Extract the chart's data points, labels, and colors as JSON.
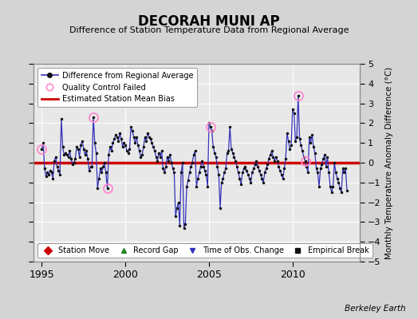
{
  "title": "DECORAH MUNI AP",
  "subtitle": "Difference of Station Temperature Data from Regional Average",
  "ylabel": "Monthly Temperature Anomaly Difference (°C)",
  "ylim": [
    -5,
    5
  ],
  "xlim": [
    1994.5,
    2014.0
  ],
  "bias": 0.0,
  "fig_bg": "#d4d4d4",
  "plot_bg": "#e8e8e8",
  "line_color": "#3333bb",
  "marker_color": "#111111",
  "bias_color": "#cc0000",
  "qc_color": "#ff88cc",
  "grid_color": "#ffffff",
  "berkeley_earth_text": "Berkeley Earth",
  "time_series": [
    [
      1995.0,
      0.7
    ],
    [
      1995.083,
      1.0
    ],
    [
      1995.167,
      -0.3
    ],
    [
      1995.25,
      -0.7
    ],
    [
      1995.333,
      -0.5
    ],
    [
      1995.417,
      -0.6
    ],
    [
      1995.5,
      -0.4
    ],
    [
      1995.583,
      -0.5
    ],
    [
      1995.667,
      -0.8
    ],
    [
      1995.75,
      0.1
    ],
    [
      1995.833,
      0.3
    ],
    [
      1995.917,
      -0.2
    ],
    [
      1996.0,
      -0.4
    ],
    [
      1996.083,
      -0.6
    ],
    [
      1996.167,
      2.2
    ],
    [
      1996.25,
      0.8
    ],
    [
      1996.333,
      0.4
    ],
    [
      1996.417,
      0.5
    ],
    [
      1996.5,
      0.4
    ],
    [
      1996.583,
      0.3
    ],
    [
      1996.667,
      0.6
    ],
    [
      1996.75,
      0.2
    ],
    [
      1996.833,
      -0.1
    ],
    [
      1996.917,
      0.0
    ],
    [
      1997.0,
      0.2
    ],
    [
      1997.083,
      0.8
    ],
    [
      1997.167,
      0.7
    ],
    [
      1997.25,
      0.3
    ],
    [
      1997.333,
      0.9
    ],
    [
      1997.417,
      1.1
    ],
    [
      1997.5,
      0.7
    ],
    [
      1997.583,
      0.4
    ],
    [
      1997.667,
      0.6
    ],
    [
      1997.75,
      0.2
    ],
    [
      1997.833,
      -0.4
    ],
    [
      1997.917,
      -0.2
    ],
    [
      1998.0,
      -0.2
    ],
    [
      1998.083,
      2.3
    ],
    [
      1998.167,
      1.0
    ],
    [
      1998.25,
      0.5
    ],
    [
      1998.333,
      -1.3
    ],
    [
      1998.417,
      -0.8
    ],
    [
      1998.5,
      -0.3
    ],
    [
      1998.583,
      -0.5
    ],
    [
      1998.667,
      -0.2
    ],
    [
      1998.75,
      0.0
    ],
    [
      1998.833,
      -0.5
    ],
    [
      1998.917,
      -1.3
    ],
    [
      1999.0,
      0.4
    ],
    [
      1999.083,
      0.8
    ],
    [
      1999.167,
      0.6
    ],
    [
      1999.25,
      1.0
    ],
    [
      1999.333,
      1.2
    ],
    [
      1999.417,
      1.4
    ],
    [
      1999.5,
      1.3
    ],
    [
      1999.583,
      1.1
    ],
    [
      1999.667,
      1.5
    ],
    [
      1999.75,
      1.2
    ],
    [
      1999.833,
      0.8
    ],
    [
      1999.917,
      1.0
    ],
    [
      2000.0,
      0.9
    ],
    [
      2000.083,
      0.6
    ],
    [
      2000.167,
      0.5
    ],
    [
      2000.25,
      0.7
    ],
    [
      2000.333,
      1.8
    ],
    [
      2000.417,
      1.6
    ],
    [
      2000.5,
      1.3
    ],
    [
      2000.583,
      1.0
    ],
    [
      2000.667,
      1.3
    ],
    [
      2000.75,
      0.9
    ],
    [
      2000.833,
      0.6
    ],
    [
      2000.917,
      0.3
    ],
    [
      2001.0,
      0.4
    ],
    [
      2001.083,
      0.8
    ],
    [
      2001.167,
      1.3
    ],
    [
      2001.25,
      1.1
    ],
    [
      2001.333,
      1.5
    ],
    [
      2001.417,
      1.3
    ],
    [
      2001.5,
      1.2
    ],
    [
      2001.583,
      1.0
    ],
    [
      2001.667,
      0.8
    ],
    [
      2001.75,
      0.6
    ],
    [
      2001.833,
      0.3
    ],
    [
      2001.917,
      0.1
    ],
    [
      2002.0,
      0.5
    ],
    [
      2002.083,
      0.3
    ],
    [
      2002.167,
      0.6
    ],
    [
      2002.25,
      -0.3
    ],
    [
      2002.333,
      -0.5
    ],
    [
      2002.417,
      -0.2
    ],
    [
      2002.5,
      0.3
    ],
    [
      2002.583,
      0.1
    ],
    [
      2002.667,
      0.4
    ],
    [
      2002.75,
      0.0
    ],
    [
      2002.833,
      -0.3
    ],
    [
      2002.917,
      -0.5
    ],
    [
      2003.0,
      -2.7
    ],
    [
      2003.083,
      -2.3
    ],
    [
      2003.167,
      -2.0
    ],
    [
      2003.25,
      -3.2
    ],
    [
      2003.333,
      -0.5
    ],
    [
      2003.417,
      0.0
    ],
    [
      2003.5,
      -3.3
    ],
    [
      2003.583,
      -3.1
    ],
    [
      2003.667,
      -1.2
    ],
    [
      2003.75,
      -0.9
    ],
    [
      2003.833,
      -0.5
    ],
    [
      2003.917,
      -0.2
    ],
    [
      2004.0,
      0.0
    ],
    [
      2004.083,
      0.4
    ],
    [
      2004.167,
      0.6
    ],
    [
      2004.25,
      -1.2
    ],
    [
      2004.333,
      -0.8
    ],
    [
      2004.417,
      -0.5
    ],
    [
      2004.5,
      -0.2
    ],
    [
      2004.583,
      0.1
    ],
    [
      2004.667,
      -0.2
    ],
    [
      2004.75,
      -0.4
    ],
    [
      2004.833,
      -0.6
    ],
    [
      2004.917,
      -1.2
    ],
    [
      2005.0,
      2.0
    ],
    [
      2005.083,
      1.8
    ],
    [
      2005.167,
      1.6
    ],
    [
      2005.25,
      0.8
    ],
    [
      2005.333,
      0.5
    ],
    [
      2005.417,
      0.3
    ],
    [
      2005.5,
      -0.2
    ],
    [
      2005.583,
      -0.6
    ],
    [
      2005.667,
      -2.3
    ],
    [
      2005.75,
      -1.0
    ],
    [
      2005.833,
      -0.8
    ],
    [
      2005.917,
      -0.5
    ],
    [
      2006.0,
      -0.3
    ],
    [
      2006.083,
      0.5
    ],
    [
      2006.167,
      0.6
    ],
    [
      2006.25,
      1.8
    ],
    [
      2006.333,
      0.7
    ],
    [
      2006.417,
      0.5
    ],
    [
      2006.5,
      0.3
    ],
    [
      2006.583,
      0.1
    ],
    [
      2006.667,
      -0.2
    ],
    [
      2006.75,
      -0.5
    ],
    [
      2006.833,
      -0.8
    ],
    [
      2006.917,
      -1.1
    ],
    [
      2007.0,
      -0.5
    ],
    [
      2007.083,
      -0.3
    ],
    [
      2007.167,
      -0.2
    ],
    [
      2007.25,
      -0.4
    ],
    [
      2007.333,
      -0.6
    ],
    [
      2007.417,
      -0.8
    ],
    [
      2007.5,
      -1.0
    ],
    [
      2007.583,
      -0.5
    ],
    [
      2007.667,
      -0.3
    ],
    [
      2007.75,
      -0.1
    ],
    [
      2007.833,
      0.1
    ],
    [
      2007.917,
      -0.2
    ],
    [
      2008.0,
      -0.4
    ],
    [
      2008.083,
      -0.6
    ],
    [
      2008.167,
      -0.8
    ],
    [
      2008.25,
      -1.0
    ],
    [
      2008.333,
      -0.5
    ],
    [
      2008.417,
      -0.3
    ],
    [
      2008.5,
      -0.1
    ],
    [
      2008.583,
      0.2
    ],
    [
      2008.667,
      0.4
    ],
    [
      2008.75,
      0.6
    ],
    [
      2008.833,
      0.3
    ],
    [
      2008.917,
      0.1
    ],
    [
      2009.0,
      0.3
    ],
    [
      2009.083,
      0.1
    ],
    [
      2009.167,
      -0.2
    ],
    [
      2009.25,
      -0.4
    ],
    [
      2009.333,
      -0.6
    ],
    [
      2009.417,
      -0.8
    ],
    [
      2009.5,
      -0.3
    ],
    [
      2009.583,
      0.2
    ],
    [
      2009.667,
      1.5
    ],
    [
      2009.75,
      1.1
    ],
    [
      2009.833,
      0.7
    ],
    [
      2009.917,
      0.9
    ],
    [
      2010.0,
      2.7
    ],
    [
      2010.083,
      2.5
    ],
    [
      2010.167,
      1.1
    ],
    [
      2010.25,
      1.3
    ],
    [
      2010.333,
      3.4
    ],
    [
      2010.417,
      1.2
    ],
    [
      2010.5,
      0.9
    ],
    [
      2010.583,
      0.6
    ],
    [
      2010.667,
      0.3
    ],
    [
      2010.75,
      0.1
    ],
    [
      2010.833,
      -0.2
    ],
    [
      2010.917,
      -0.5
    ],
    [
      2011.0,
      1.3
    ],
    [
      2011.083,
      1.0
    ],
    [
      2011.167,
      1.4
    ],
    [
      2011.25,
      0.8
    ],
    [
      2011.333,
      0.5
    ],
    [
      2011.417,
      -0.3
    ],
    [
      2011.5,
      -0.5
    ],
    [
      2011.583,
      -1.2
    ],
    [
      2011.667,
      -0.3
    ],
    [
      2011.75,
      -0.1
    ],
    [
      2011.833,
      0.2
    ],
    [
      2011.917,
      0.4
    ],
    [
      2012.0,
      -0.2
    ],
    [
      2012.083,
      0.3
    ],
    [
      2012.167,
      -0.5
    ],
    [
      2012.25,
      -1.2
    ],
    [
      2012.333,
      -1.5
    ],
    [
      2012.417,
      -1.2
    ],
    [
      2012.5,
      0.0
    ],
    [
      2012.583,
      -0.5
    ],
    [
      2012.667,
      -0.8
    ],
    [
      2012.75,
      -1.0
    ],
    [
      2012.833,
      -1.3
    ],
    [
      2012.917,
      -1.5
    ],
    [
      2013.0,
      -0.3
    ],
    [
      2013.083,
      -0.5
    ],
    [
      2013.167,
      -0.3
    ],
    [
      2013.25,
      -1.4
    ]
  ],
  "qc_failed": [
    [
      1995.0,
      0.7
    ],
    [
      1998.083,
      2.3
    ],
    [
      1998.917,
      -1.3
    ],
    [
      2005.083,
      1.8
    ],
    [
      2010.333,
      3.4
    ],
    [
      2010.75,
      0.1
    ]
  ],
  "xticks": [
    1995,
    2000,
    2005,
    2010
  ],
  "yticks_left": [
    -5,
    -4,
    -3,
    -2,
    -1,
    0,
    1,
    2,
    3,
    4,
    5
  ],
  "yticks_right": [
    -5,
    -4,
    -3,
    -2,
    -1,
    0,
    1,
    2,
    3,
    4,
    5
  ]
}
